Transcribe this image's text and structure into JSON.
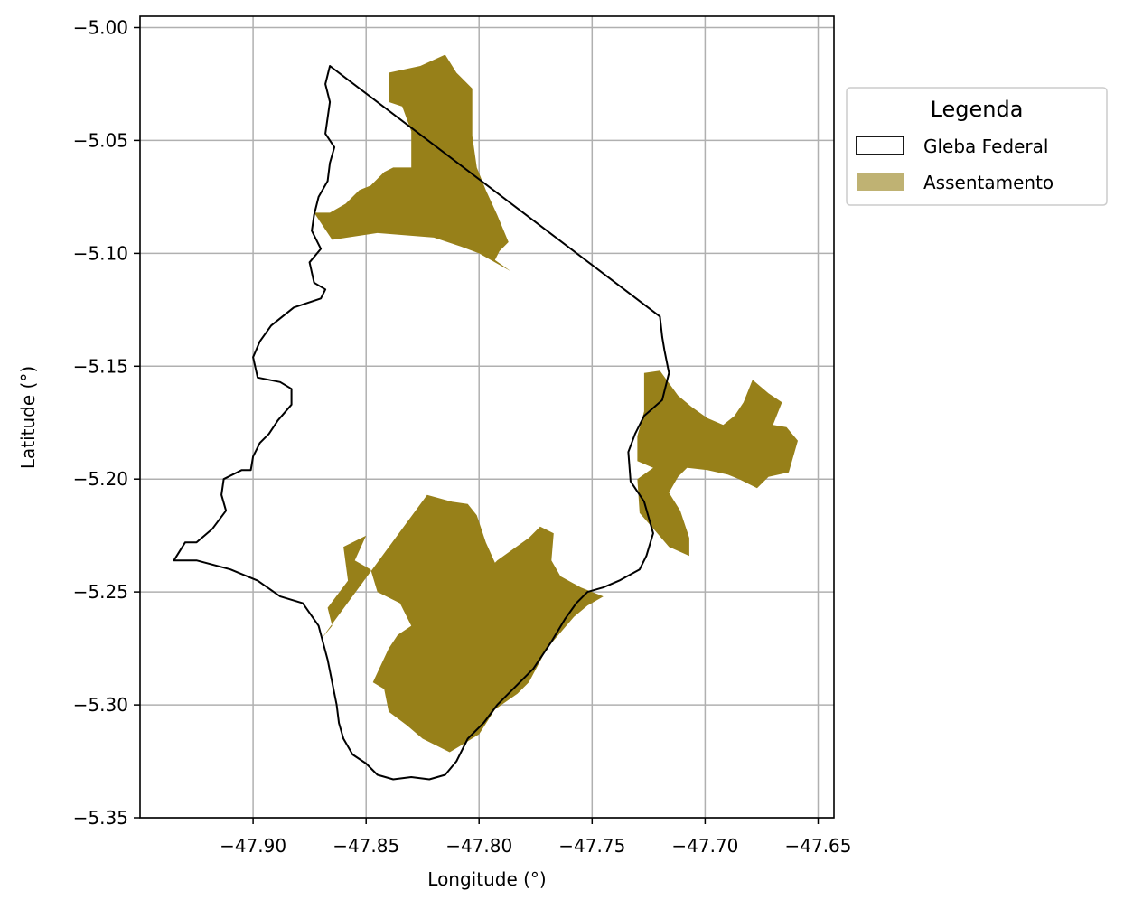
{
  "chart_data": {
    "type": "map",
    "xlabel": "Longitude (°)",
    "ylabel": "Latitude (°)",
    "xlim": [
      -47.95,
      -47.643
    ],
    "ylim": [
      -5.35,
      -4.995
    ],
    "grid": true,
    "x_ticks": [
      -47.9,
      -47.85,
      -47.8,
      -47.75,
      -47.7,
      -47.65
    ],
    "x_tick_labels": [
      "−47.90",
      "−47.85",
      "−47.80",
      "−47.75",
      "−47.70",
      "−47.65"
    ],
    "y_ticks": [
      -5.0,
      -5.05,
      -5.1,
      -5.15,
      -5.2,
      -5.25,
      -5.3,
      -5.35
    ],
    "y_tick_labels": [
      "−5.00",
      "−5.05",
      "−5.10",
      "−5.15",
      "−5.20",
      "−5.25",
      "−5.30",
      "−5.35"
    ],
    "legend": {
      "title": "Legenda",
      "placement": "upper-right-outside",
      "entries": [
        {
          "label": "Gleba Federal",
          "style": "outline",
          "color": "#000000"
        },
        {
          "label": "Assentamento",
          "style": "fill",
          "color": "#978019"
        }
      ]
    },
    "colors": {
      "gleba_edge": "#000000",
      "assentamento_fill": "#978019",
      "grid": "#b0b0b0"
    },
    "gleba_federal": [
      [
        -47.866,
        -5.017
      ],
      [
        -47.72,
        -5.128
      ],
      [
        -47.719,
        -5.137
      ],
      [
        -47.718,
        -5.143
      ],
      [
        -47.716,
        -5.153
      ],
      [
        -47.719,
        -5.165
      ],
      [
        -47.727,
        -5.172
      ],
      [
        -47.731,
        -5.18
      ],
      [
        -47.734,
        -5.188
      ],
      [
        -47.733,
        -5.201
      ],
      [
        -47.727,
        -5.21
      ],
      [
        -47.723,
        -5.224
      ],
      [
        -47.726,
        -5.234
      ],
      [
        -47.729,
        -5.24
      ],
      [
        -47.738,
        -5.245
      ],
      [
        -47.745,
        -5.248
      ],
      [
        -47.752,
        -5.25
      ],
      [
        -47.757,
        -5.255
      ],
      [
        -47.762,
        -5.262
      ],
      [
        -47.768,
        -5.272
      ],
      [
        -47.776,
        -5.284
      ],
      [
        -47.785,
        -5.293
      ],
      [
        -47.792,
        -5.3
      ],
      [
        -47.798,
        -5.308
      ],
      [
        -47.805,
        -5.315
      ],
      [
        -47.81,
        -5.325
      ],
      [
        -47.815,
        -5.331
      ],
      [
        -47.822,
        -5.333
      ],
      [
        -47.83,
        -5.332
      ],
      [
        -47.838,
        -5.333
      ],
      [
        -47.845,
        -5.331
      ],
      [
        -47.85,
        -5.326
      ],
      [
        -47.856,
        -5.322
      ],
      [
        -47.86,
        -5.315
      ],
      [
        -47.862,
        -5.308
      ],
      [
        -47.863,
        -5.3
      ],
      [
        -47.865,
        -5.29
      ],
      [
        -47.867,
        -5.28
      ],
      [
        -47.871,
        -5.265
      ],
      [
        -47.878,
        -5.255
      ],
      [
        -47.888,
        -5.252
      ],
      [
        -47.898,
        -5.245
      ],
      [
        -47.91,
        -5.24
      ],
      [
        -47.925,
        -5.236
      ],
      [
        -47.935,
        -5.236
      ],
      [
        -47.93,
        -5.228
      ],
      [
        -47.925,
        -5.228
      ],
      [
        -47.918,
        -5.222
      ],
      [
        -47.912,
        -5.214
      ],
      [
        -47.914,
        -5.207
      ],
      [
        -47.913,
        -5.2
      ],
      [
        -47.905,
        -5.196
      ],
      [
        -47.901,
        -5.196
      ],
      [
        -47.9,
        -5.19
      ],
      [
        -47.897,
        -5.184
      ],
      [
        -47.893,
        -5.18
      ],
      [
        -47.889,
        -5.174
      ],
      [
        -47.883,
        -5.167
      ],
      [
        -47.883,
        -5.16
      ],
      [
        -47.888,
        -5.157
      ],
      [
        -47.898,
        -5.155
      ],
      [
        -47.9,
        -5.146
      ],
      [
        -47.897,
        -5.139
      ],
      [
        -47.892,
        -5.132
      ],
      [
        -47.882,
        -5.124
      ],
      [
        -47.87,
        -5.12
      ],
      [
        -47.868,
        -5.116
      ],
      [
        -47.873,
        -5.113
      ],
      [
        -47.875,
        -5.104
      ],
      [
        -47.87,
        -5.098
      ],
      [
        -47.874,
        -5.09
      ],
      [
        -47.873,
        -5.083
      ],
      [
        -47.871,
        -5.075
      ],
      [
        -47.867,
        -5.068
      ],
      [
        -47.866,
        -5.06
      ],
      [
        -47.864,
        -5.053
      ],
      [
        -47.868,
        -5.047
      ],
      [
        -47.867,
        -5.04
      ],
      [
        -47.866,
        -5.033
      ],
      [
        -47.868,
        -5.025
      ]
    ],
    "assentamentos": [
      [
        [
          -47.84,
          -5.02
        ],
        [
          -47.826,
          -5.017
        ],
        [
          -47.815,
          -5.012
        ],
        [
          -47.81,
          -5.02
        ],
        [
          -47.803,
          -5.027
        ],
        [
          -47.803,
          -5.048
        ],
        [
          -47.801,
          -5.062
        ],
        [
          -47.797,
          -5.072
        ],
        [
          -47.792,
          -5.083
        ],
        [
          -47.787,
          -5.095
        ],
        [
          -47.791,
          -5.099
        ],
        [
          -47.793,
          -5.103
        ],
        [
          -47.786,
          -5.108
        ],
        [
          -47.8,
          -5.1
        ],
        [
          -47.808,
          -5.097
        ],
        [
          -47.82,
          -5.093
        ],
        [
          -47.845,
          -5.091
        ],
        [
          -47.865,
          -5.094
        ],
        [
          -47.873,
          -5.082
        ],
        [
          -47.87,
          -5.082
        ],
        [
          -47.866,
          -5.082
        ],
        [
          -47.859,
          -5.078
        ],
        [
          -47.853,
          -5.072
        ],
        [
          -47.848,
          -5.07
        ],
        [
          -47.842,
          -5.064
        ],
        [
          -47.838,
          -5.062
        ],
        [
          -47.83,
          -5.062
        ],
        [
          -47.83,
          -5.046
        ],
        [
          -47.834,
          -5.035
        ],
        [
          -47.84,
          -5.033
        ]
      ],
      [
        [
          -47.823,
          -5.207
        ],
        [
          -47.812,
          -5.21
        ],
        [
          -47.805,
          -5.211
        ],
        [
          -47.801,
          -5.216
        ],
        [
          -47.797,
          -5.228
        ],
        [
          -47.793,
          -5.237
        ],
        [
          -47.792,
          -5.236
        ],
        [
          -47.778,
          -5.226
        ],
        [
          -47.773,
          -5.221
        ],
        [
          -47.767,
          -5.224
        ],
        [
          -47.768,
          -5.236
        ],
        [
          -47.764,
          -5.243
        ],
        [
          -47.755,
          -5.248
        ],
        [
          -47.75,
          -5.25
        ],
        [
          -47.745,
          -5.252
        ],
        [
          -47.752,
          -5.256
        ],
        [
          -47.758,
          -5.261
        ],
        [
          -47.77,
          -5.275
        ],
        [
          -47.778,
          -5.29
        ],
        [
          -47.783,
          -5.295
        ],
        [
          -47.793,
          -5.302
        ],
        [
          -47.8,
          -5.313
        ],
        [
          -47.808,
          -5.318
        ],
        [
          -47.813,
          -5.321
        ],
        [
          -47.819,
          -5.318
        ],
        [
          -47.825,
          -5.315
        ],
        [
          -47.832,
          -5.309
        ],
        [
          -47.84,
          -5.303
        ],
        [
          -47.842,
          -5.293
        ],
        [
          -47.847,
          -5.29
        ],
        [
          -47.84,
          -5.275
        ],
        [
          -47.836,
          -5.269
        ],
        [
          -47.83,
          -5.265
        ],
        [
          -47.835,
          -5.255
        ],
        [
          -47.845,
          -5.25
        ],
        [
          -47.848,
          -5.24
        ],
        [
          -47.855,
          -5.236
        ],
        [
          -47.85,
          -5.225
        ],
        [
          -47.86,
          -5.23
        ],
        [
          -47.858,
          -5.245
        ],
        [
          -47.867,
          -5.257
        ],
        [
          -47.865,
          -5.265
        ],
        [
          -47.87,
          -5.271
        ]
      ],
      [
        [
          -47.727,
          -5.153
        ],
        [
          -47.72,
          -5.152
        ],
        [
          -47.712,
          -5.163
        ],
        [
          -47.706,
          -5.168
        ],
        [
          -47.699,
          -5.173
        ],
        [
          -47.692,
          -5.176
        ],
        [
          -47.687,
          -5.172
        ],
        [
          -47.683,
          -5.166
        ],
        [
          -47.679,
          -5.156
        ],
        [
          -47.672,
          -5.162
        ],
        [
          -47.666,
          -5.166
        ],
        [
          -47.67,
          -5.176
        ],
        [
          -47.664,
          -5.177
        ],
        [
          -47.659,
          -5.183
        ],
        [
          -47.663,
          -5.197
        ],
        [
          -47.672,
          -5.199
        ],
        [
          -47.677,
          -5.204
        ],
        [
          -47.685,
          -5.2
        ],
        [
          -47.69,
          -5.198
        ],
        [
          -47.699,
          -5.196
        ],
        [
          -47.708,
          -5.195
        ],
        [
          -47.712,
          -5.199
        ],
        [
          -47.716,
          -5.206
        ],
        [
          -47.711,
          -5.214
        ],
        [
          -47.707,
          -5.226
        ],
        [
          -47.707,
          -5.234
        ],
        [
          -47.716,
          -5.23
        ],
        [
          -47.722,
          -5.223
        ],
        [
          -47.729,
          -5.215
        ],
        [
          -47.73,
          -5.2
        ],
        [
          -47.723,
          -5.195
        ],
        [
          -47.73,
          -5.192
        ],
        [
          -47.73,
          -5.181
        ],
        [
          -47.727,
          -5.17
        ]
      ]
    ]
  }
}
